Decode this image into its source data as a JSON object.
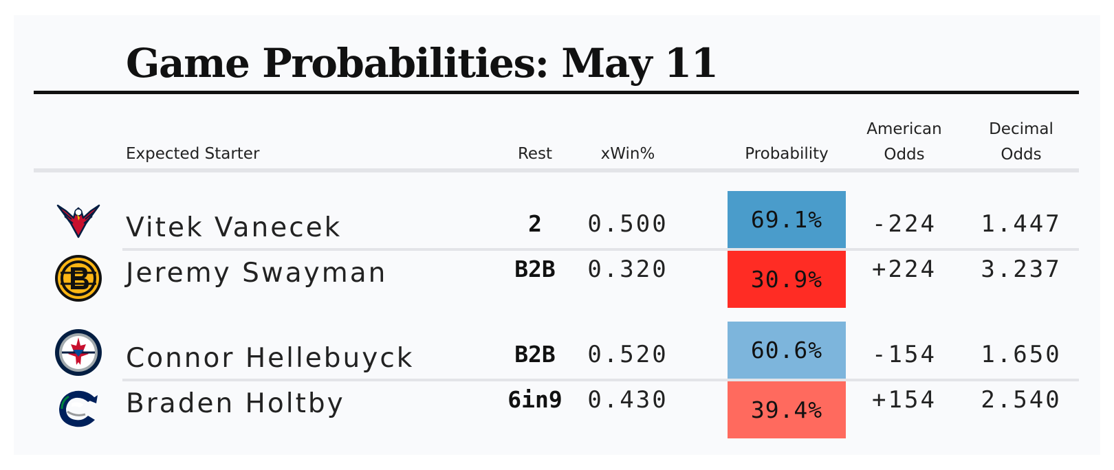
{
  "title": "Game Probabilities: May 11",
  "headers": {
    "starter": "Expected Starter",
    "rest": "Rest",
    "xwin": "xWin%",
    "probability": "Probability",
    "american_1": "American",
    "american_2": "Odds",
    "decimal_1": "Decimal",
    "decimal_2": "Odds"
  },
  "colors": {
    "fav_strong": "#4a9ccb",
    "dog_strong": "#ff2c24",
    "fav_light": "#7db5dc",
    "dog_light": "#ff6a5e"
  },
  "games": [
    {
      "teams": [
        {
          "logo": "capitals-eagle-logo",
          "starter": "Vitek Vanecek",
          "rest": "2",
          "xwin": "0.500",
          "probability": "69.1%",
          "probability_value": 0.691,
          "american": "-224",
          "decimal": "1.447"
        },
        {
          "logo": "bruins-b-logo",
          "starter": "Jeremy Swayman",
          "rest": "B2B",
          "xwin": "0.320",
          "probability": "30.9%",
          "probability_value": 0.309,
          "american": "+224",
          "decimal": "3.237"
        }
      ]
    },
    {
      "teams": [
        {
          "logo": "jets-roundel-logo",
          "starter": "Connor Hellebuyck",
          "rest": "B2B",
          "xwin": "0.520",
          "probability": "60.6%",
          "probability_value": 0.606,
          "american": "-154",
          "decimal": "1.650"
        },
        {
          "logo": "canucks-orca-logo",
          "starter": "Braden Holtby",
          "rest": "6in9",
          "xwin": "0.430",
          "probability": "39.4%",
          "probability_value": 0.394,
          "american": "+154",
          "decimal": "2.540"
        }
      ]
    }
  ]
}
